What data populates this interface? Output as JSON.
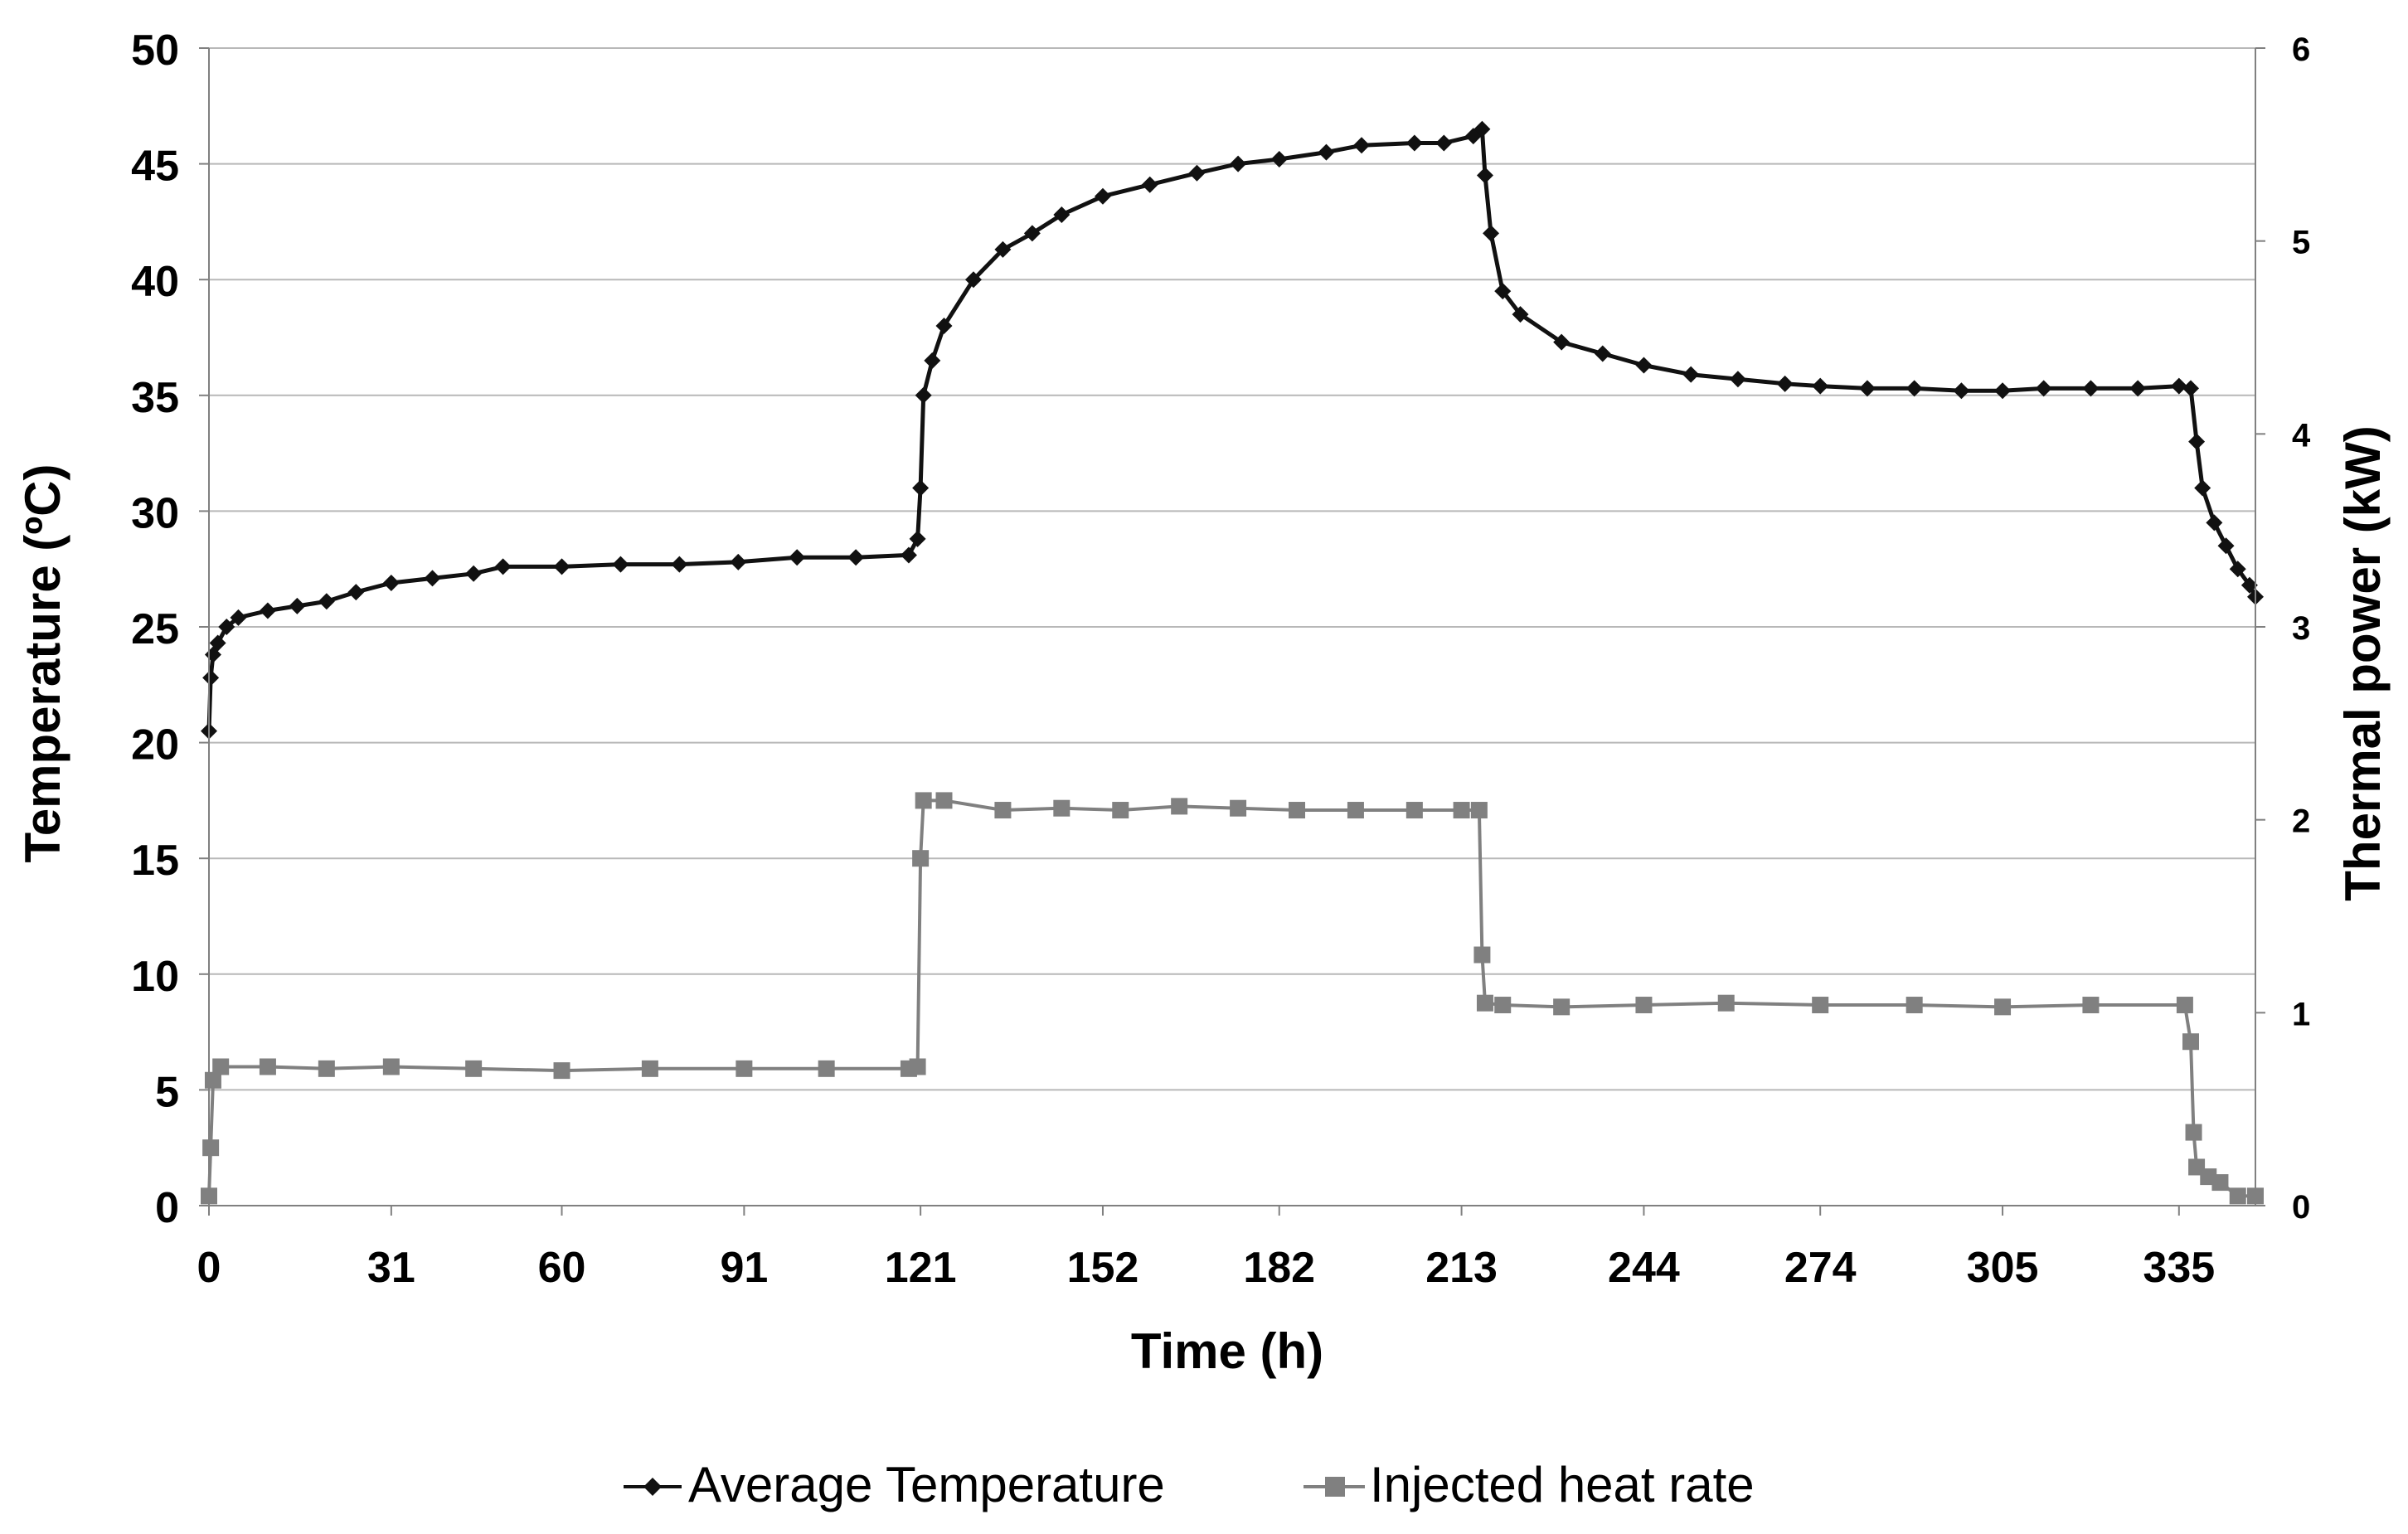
{
  "chart_data": {
    "type": "line",
    "title": "",
    "xlabel": "Time (h)",
    "ylabel": "Temperature (ºC)",
    "y2label": "Thermal power (kW)",
    "xlim": [
      0,
      348
    ],
    "ylim": [
      0,
      50
    ],
    "y2lim": [
      0,
      6
    ],
    "x_ticks": [
      "0",
      "31",
      "60",
      "91",
      "121",
      "152",
      "182",
      "213",
      "244",
      "274",
      "305",
      "335"
    ],
    "x_tick_values": [
      0,
      31,
      60,
      91,
      121,
      152,
      182,
      213,
      244,
      274,
      305,
      335
    ],
    "y_ticks": [
      "0",
      "5",
      "10",
      "15",
      "20",
      "25",
      "30",
      "35",
      "40",
      "45",
      "50"
    ],
    "y2_ticks": [
      "0",
      "1",
      "2",
      "3",
      "4",
      "5",
      "6"
    ],
    "grid": true,
    "legend_position": "bottom",
    "colors": {
      "temperature": "#111111",
      "heat": "#808080",
      "grid": "#b8b8b8"
    },
    "series": [
      {
        "name": "Average Temperature",
        "axis": "left",
        "marker": "diamond",
        "points": [
          [
            0,
            20.5
          ],
          [
            0.3,
            22.8
          ],
          [
            0.7,
            23.8
          ],
          [
            1.5,
            24.3
          ],
          [
            3,
            25.0
          ],
          [
            5,
            25.4
          ],
          [
            10,
            25.7
          ],
          [
            15,
            25.9
          ],
          [
            20,
            26.1
          ],
          [
            25,
            26.5
          ],
          [
            31,
            26.9
          ],
          [
            38,
            27.1
          ],
          [
            45,
            27.3
          ],
          [
            50,
            27.6
          ],
          [
            60,
            27.6
          ],
          [
            70,
            27.7
          ],
          [
            80,
            27.7
          ],
          [
            90,
            27.8
          ],
          [
            100,
            28.0
          ],
          [
            110,
            28.0
          ],
          [
            119,
            28.1
          ],
          [
            120.5,
            28.8
          ],
          [
            121,
            31.0
          ],
          [
            121.5,
            35.0
          ],
          [
            123,
            36.5
          ],
          [
            125,
            38.0
          ],
          [
            130,
            40.0
          ],
          [
            135,
            41.3
          ],
          [
            140,
            42.0
          ],
          [
            145,
            42.8
          ],
          [
            152,
            43.6
          ],
          [
            160,
            44.1
          ],
          [
            168,
            44.6
          ],
          [
            175,
            45.0
          ],
          [
            182,
            45.2
          ],
          [
            190,
            45.5
          ],
          [
            196,
            45.8
          ],
          [
            205,
            45.9
          ],
          [
            210,
            45.9
          ],
          [
            215,
            46.2
          ],
          [
            216.5,
            46.5
          ],
          [
            217,
            44.5
          ],
          [
            218,
            42.0
          ],
          [
            220,
            39.5
          ],
          [
            223,
            38.5
          ],
          [
            230,
            37.3
          ],
          [
            237,
            36.8
          ],
          [
            244,
            36.3
          ],
          [
            252,
            35.9
          ],
          [
            260,
            35.7
          ],
          [
            268,
            35.5
          ],
          [
            274,
            35.4
          ],
          [
            282,
            35.3
          ],
          [
            290,
            35.3
          ],
          [
            298,
            35.2
          ],
          [
            305,
            35.2
          ],
          [
            312,
            35.3
          ],
          [
            320,
            35.3
          ],
          [
            328,
            35.3
          ],
          [
            335,
            35.4
          ],
          [
            337,
            35.3
          ],
          [
            338,
            33.0
          ],
          [
            339,
            31.0
          ],
          [
            341,
            29.5
          ],
          [
            343,
            28.5
          ],
          [
            345,
            27.5
          ],
          [
            347,
            26.8
          ],
          [
            348,
            26.3
          ]
        ]
      },
      {
        "name": "Injected heat rate",
        "axis": "right",
        "marker": "square",
        "points": [
          [
            0,
            0.05
          ],
          [
            0.3,
            0.3
          ],
          [
            0.7,
            0.65
          ],
          [
            2,
            0.72
          ],
          [
            10,
            0.72
          ],
          [
            20,
            0.71
          ],
          [
            31,
            0.72
          ],
          [
            45,
            0.71
          ],
          [
            60,
            0.7
          ],
          [
            75,
            0.71
          ],
          [
            91,
            0.71
          ],
          [
            105,
            0.71
          ],
          [
            119,
            0.71
          ],
          [
            120.5,
            0.72
          ],
          [
            121,
            1.8
          ],
          [
            121.5,
            2.1
          ],
          [
            125,
            2.1
          ],
          [
            135,
            2.05
          ],
          [
            145,
            2.06
          ],
          [
            155,
            2.05
          ],
          [
            165,
            2.07
          ],
          [
            175,
            2.06
          ],
          [
            185,
            2.05
          ],
          [
            195,
            2.05
          ],
          [
            205,
            2.05
          ],
          [
            213,
            2.05
          ],
          [
            216,
            2.05
          ],
          [
            216.5,
            1.3
          ],
          [
            217,
            1.05
          ],
          [
            220,
            1.04
          ],
          [
            230,
            1.03
          ],
          [
            244,
            1.04
          ],
          [
            258,
            1.05
          ],
          [
            274,
            1.04
          ],
          [
            290,
            1.04
          ],
          [
            305,
            1.03
          ],
          [
            320,
            1.04
          ],
          [
            336,
            1.04
          ],
          [
            337,
            0.85
          ],
          [
            337.5,
            0.38
          ],
          [
            338,
            0.2
          ],
          [
            340,
            0.15
          ],
          [
            342,
            0.12
          ],
          [
            345,
            0.05
          ],
          [
            348,
            0.05
          ]
        ]
      }
    ]
  }
}
